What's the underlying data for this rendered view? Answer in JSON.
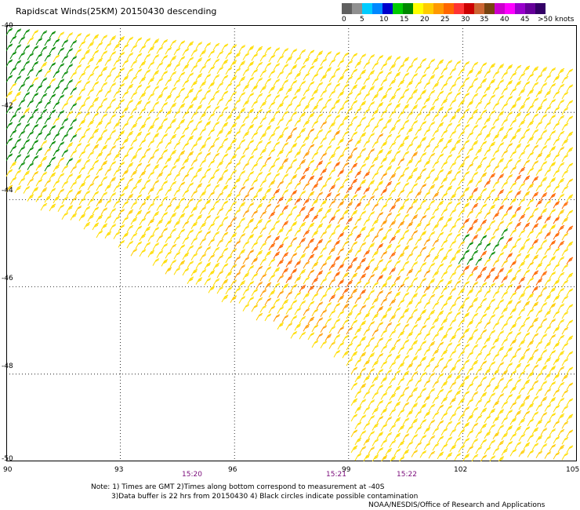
{
  "title": "Rapidscat Winds(25KM) 20150430 descending",
  "legend": {
    "labels": [
      "0",
      "5",
      "10",
      "15",
      "20",
      "25",
      "30",
      "35",
      "40",
      "45",
      ">50 knots"
    ],
    "colors": [
      "#606060",
      "#909090",
      "#00ccff",
      "#0088ff",
      "#0000cc",
      "#00cc00",
      "#008800",
      "#ffff00",
      "#ffcc00",
      "#ff9900",
      "#ff6600",
      "#ff3333",
      "#cc0000",
      "#cc6633",
      "#774411",
      "#cc00cc",
      "#ff00ff",
      "#9900cc",
      "#660099",
      "#330066"
    ]
  },
  "axes": {
    "x_ticks": [
      "90",
      "93",
      "96",
      "99",
      "102",
      "105"
    ],
    "y_ticks": [
      "-40",
      "-42",
      "-44",
      "-46",
      "-48",
      "-50"
    ]
  },
  "times": [
    {
      "label": "15:20",
      "lon": 94.9
    },
    {
      "label": "15:21",
      "lon": 98.8
    },
    {
      "label": "15:22",
      "lon": 100.6
    }
  ],
  "notes": {
    "line1": "Note: 1) Times are GMT 2)Times along bottom correspond to measurement at -40S",
    "line2": "3)Data buffer is 22 hrs from 20150430 4) Black circles indicate possible contamination",
    "line3": "NOAA/NESDIS/Office of Research and Applications"
  }
}
